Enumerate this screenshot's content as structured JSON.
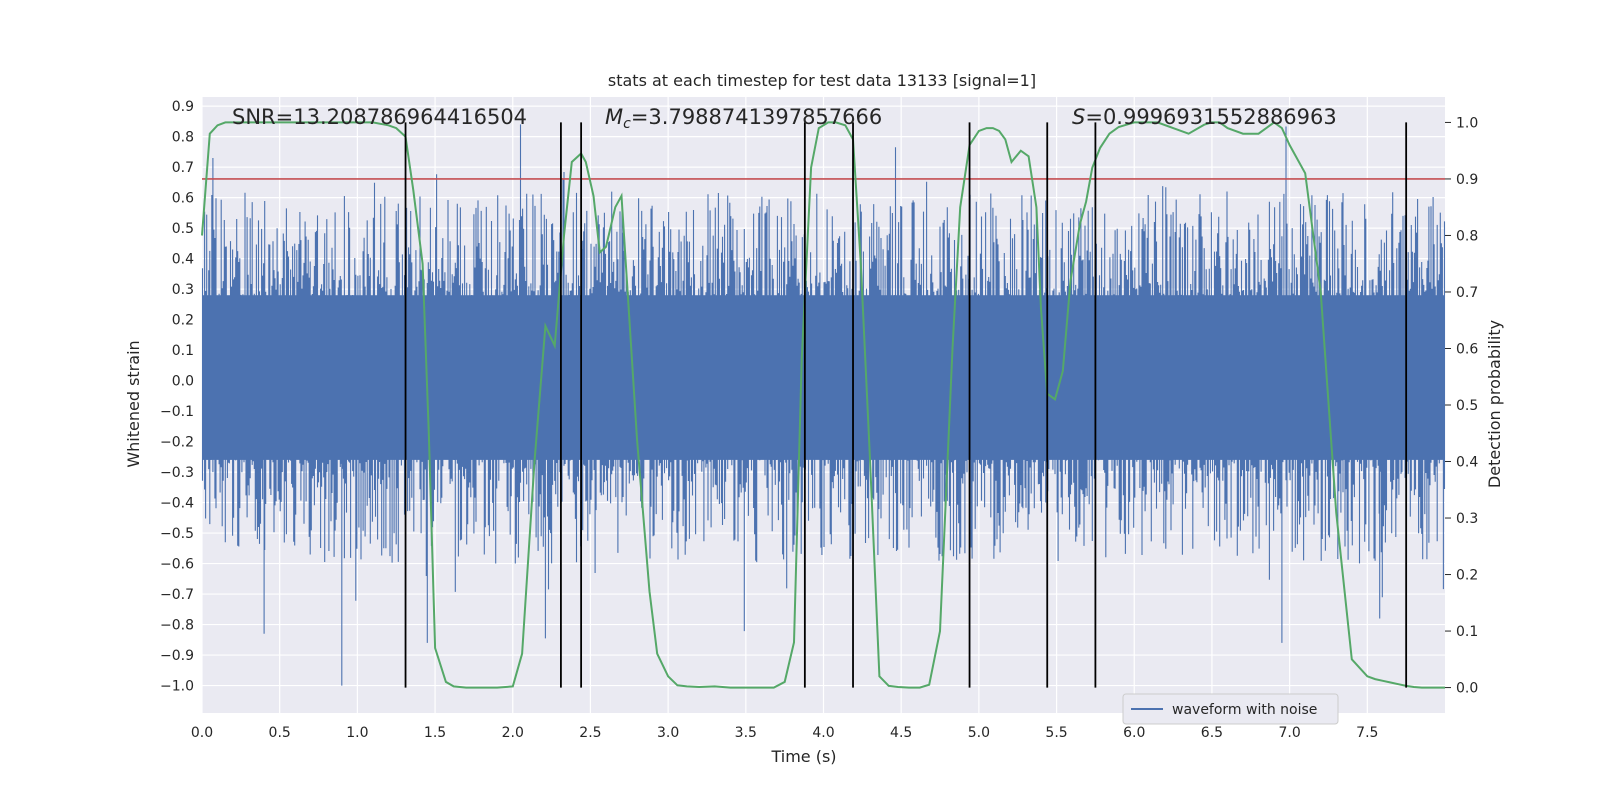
{
  "chart_data": {
    "type": "line",
    "title": "stats at each timestep for test data 13133 [signal=1]",
    "xlabel": "Time (s)",
    "ylabel_left": "Whitened strain",
    "ylabel_right": "Detection probability",
    "xlim": [
      0.0,
      8.0
    ],
    "ylim_left": [
      -1.09,
      0.93
    ],
    "ylim_right": [
      -0.045,
      1.045
    ],
    "xticks": [
      "0.0",
      "0.5",
      "1.0",
      "1.5",
      "2.0",
      "2.5",
      "3.0",
      "3.5",
      "4.0",
      "4.5",
      "5.0",
      "5.5",
      "6.0",
      "6.5",
      "7.0",
      "7.5"
    ],
    "xtick_values": [
      0,
      0.5,
      1,
      1.5,
      2,
      2.5,
      3,
      3.5,
      4,
      4.5,
      5,
      5.5,
      6,
      6.5,
      7,
      7.5
    ],
    "yticks_left": [
      "0.9",
      "0.8",
      "0.7",
      "0.6",
      "0.5",
      "0.4",
      "0.3",
      "0.2",
      "0.1",
      "0.0",
      "−0.1",
      "−0.2",
      "−0.3",
      "−0.4",
      "−0.5",
      "−0.6",
      "−0.7",
      "−0.8",
      "−0.9",
      "−1.0"
    ],
    "ytick_values_left": [
      0.9,
      0.8,
      0.7,
      0.6,
      0.5,
      0.4,
      0.3,
      0.2,
      0.1,
      0.0,
      -0.1,
      -0.2,
      -0.3,
      -0.4,
      -0.5,
      -0.6,
      -0.7,
      -0.8,
      -0.9,
      -1.0
    ],
    "yticks_right": [
      "1.0",
      "0.9",
      "0.8",
      "0.7",
      "0.6",
      "0.5",
      "0.4",
      "0.3",
      "0.2",
      "0.1",
      "0.0"
    ],
    "ytick_values_right": [
      1.0,
      0.9,
      0.8,
      0.7,
      0.6,
      0.5,
      0.4,
      0.3,
      0.2,
      0.1,
      0.0
    ],
    "annotations": {
      "snr": "SNR=13.208786964416504",
      "mc_symbol": "M",
      "mc_sub": "c",
      "mc_value": "=3.7988741397857666",
      "s_symbol": "S",
      "s_value": "=0.9996931552886963"
    },
    "legend": {
      "label": "waveform with noise",
      "location": "lower-right"
    },
    "threshold": 0.9,
    "vertical_lines": [
      1.31,
      2.31,
      2.44,
      3.88,
      4.19,
      4.94,
      5.44,
      5.75,
      7.75
    ],
    "waveform": {
      "name": "waveform with noise",
      "band_low": -0.26,
      "band_high": 0.28,
      "sample_count": 1200
    },
    "probability": {
      "name": "Detection probability",
      "t": [
        0.0,
        0.05,
        0.1,
        0.15,
        0.2,
        0.4,
        0.6,
        0.8,
        1.0,
        1.1,
        1.2,
        1.25,
        1.31,
        1.36,
        1.42,
        1.46,
        1.5,
        1.57,
        1.62,
        1.7,
        1.8,
        1.9,
        2.0,
        2.06,
        2.14,
        2.21,
        2.27,
        2.33,
        2.38,
        2.44,
        2.47,
        2.52,
        2.56,
        2.6,
        2.66,
        2.7,
        2.8,
        2.88,
        2.93,
        3.0,
        3.06,
        3.12,
        3.2,
        3.3,
        3.4,
        3.5,
        3.6,
        3.68,
        3.75,
        3.81,
        3.86,
        3.92,
        3.97,
        4.03,
        4.08,
        4.14,
        4.19,
        4.24,
        4.3,
        4.36,
        4.42,
        4.48,
        4.55,
        4.62,
        4.68,
        4.75,
        4.83,
        4.88,
        4.94,
        5.0,
        5.05,
        5.09,
        5.13,
        5.17,
        5.21,
        5.27,
        5.32,
        5.37,
        5.4,
        5.44,
        5.49,
        5.54,
        5.59,
        5.65,
        5.69,
        5.73,
        5.78,
        5.84,
        5.9,
        5.95,
        6.0,
        6.06,
        6.15,
        6.25,
        6.35,
        6.45,
        6.5,
        6.55,
        6.6,
        6.7,
        6.8,
        6.9,
        6.95,
        7.0,
        7.1,
        7.2,
        7.3,
        7.4,
        7.5,
        7.55,
        7.6,
        7.65,
        7.7,
        7.75,
        7.8,
        7.85,
        7.9,
        7.95,
        8.0
      ],
      "p": [
        0.8,
        0.98,
        0.995,
        1.0,
        1.0,
        1.0,
        1.0,
        1.0,
        1.0,
        1.0,
        0.995,
        0.99,
        0.975,
        0.88,
        0.75,
        0.45,
        0.07,
        0.01,
        0.002,
        0.0,
        0.0,
        0.0,
        0.002,
        0.06,
        0.4,
        0.64,
        0.605,
        0.8,
        0.93,
        0.945,
        0.93,
        0.87,
        0.77,
        0.78,
        0.85,
        0.87,
        0.44,
        0.17,
        0.06,
        0.02,
        0.004,
        0.002,
        0.001,
        0.002,
        0.0,
        0.0,
        0.0,
        0.0,
        0.01,
        0.08,
        0.58,
        0.92,
        0.99,
        1.0,
        1.0,
        0.995,
        0.97,
        0.75,
        0.4,
        0.02,
        0.003,
        0.001,
        0.0,
        0.0,
        0.005,
        0.1,
        0.6,
        0.85,
        0.96,
        0.985,
        0.99,
        0.99,
        0.985,
        0.97,
        0.93,
        0.95,
        0.94,
        0.85,
        0.67,
        0.52,
        0.51,
        0.56,
        0.72,
        0.82,
        0.86,
        0.92,
        0.955,
        0.98,
        0.992,
        0.996,
        1.0,
        1.0,
        1.0,
        0.99,
        0.98,
        0.996,
        1.0,
        1.0,
        0.99,
        0.98,
        0.98,
        1.0,
        0.99,
        0.96,
        0.91,
        0.7,
        0.31,
        0.05,
        0.02,
        0.015,
        0.012,
        0.009,
        0.006,
        0.003,
        0.001,
        0.0,
        0.0,
        0.0,
        0.0
      ]
    },
    "colors": {
      "background": "#eaeaf2",
      "grid": "#ffffff",
      "waveform": "#4c72b0",
      "probability": "#55a868",
      "threshold": "#c44e52",
      "vlines": "#000000",
      "text": "#262626"
    }
  }
}
